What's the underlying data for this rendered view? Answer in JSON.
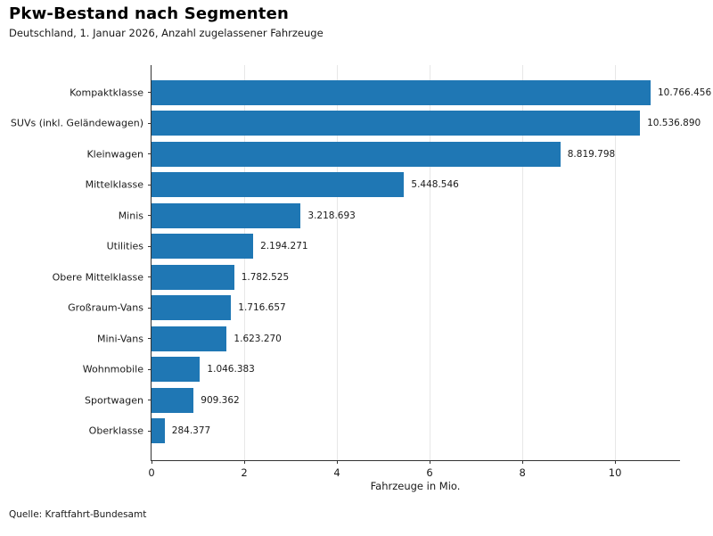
{
  "chart_data": {
    "type": "bar",
    "orientation": "horizontal",
    "title": "Pkw-Bestand nach Segmenten",
    "subtitle": "Deutschland, 1. Januar 2026, Anzahl zugelassener Fahrzeuge",
    "xlabel": "Fahrzeuge in Mio.",
    "source": "Quelle: Kraftfahrt-Bundesamt",
    "categories": [
      "Kompaktklasse",
      "SUVs (inkl. Geländewagen)",
      "Kleinwagen",
      "Mittelklasse",
      "Minis",
      "Utilities",
      "Obere Mittelklasse",
      "Großraum-Vans",
      "Mini-Vans",
      "Wohnmobile",
      "Sportwagen",
      "Oberklasse"
    ],
    "values": [
      10766456,
      10536890,
      8819798,
      5448546,
      3218693,
      2194271,
      1782525,
      1716657,
      1623270,
      1046383,
      909362,
      284377
    ],
    "value_labels": [
      "10.766.456",
      "10.536.890",
      "8.819.798",
      "5.448.546",
      "3.218.693",
      "2.194.271",
      "1.782.525",
      "1.716.657",
      "1.623.270",
      "1.046.383",
      "909.362",
      "284.377"
    ],
    "xticks": [
      0,
      2,
      4,
      6,
      8,
      10
    ],
    "xtick_labels": [
      "0",
      "2",
      "4",
      "6",
      "8",
      "10"
    ],
    "xlim": [
      0,
      11.42
    ],
    "grid": "vertical",
    "legend": "none",
    "bar_color": "#1f77b4",
    "grid_color": "#e7e7e7",
    "axis_color": "#333333"
  }
}
